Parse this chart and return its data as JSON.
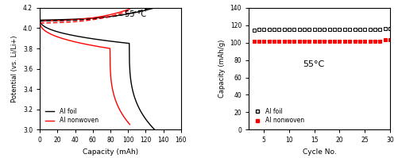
{
  "left_chart": {
    "title_text": "55 °C",
    "xlabel": "Capacity (mAh)",
    "ylabel": "Potential (vs. Li/Li+)",
    "xlim": [
      0,
      160
    ],
    "ylim": [
      3.0,
      4.2
    ],
    "yticks": [
      3.0,
      3.2,
      3.4,
      3.6,
      3.8,
      4.0,
      4.2
    ],
    "xticks": [
      0,
      20,
      40,
      60,
      80,
      100,
      120,
      140,
      160
    ],
    "legend": [
      "Al foil",
      "Al nonwoven"
    ],
    "line_colors": [
      "black",
      "red"
    ]
  },
  "right_chart": {
    "title_text": "55°C",
    "xlabel": "Cycle No.",
    "ylabel": "Capacity (mAh/g)",
    "xlim": [
      2,
      30
    ],
    "ylim": [
      0,
      140
    ],
    "yticks": [
      0,
      20,
      40,
      60,
      80,
      100,
      120,
      140
    ],
    "xticks": [
      5,
      10,
      15,
      20,
      25,
      30
    ],
    "legend": [
      "Al foil",
      "Al nonwoven"
    ],
    "foil_cycles": [
      3,
      4,
      5,
      6,
      7,
      8,
      9,
      10,
      11,
      12,
      13,
      14,
      15,
      16,
      17,
      18,
      19,
      20,
      21,
      22,
      23,
      24,
      25,
      26,
      27,
      28,
      29,
      30
    ],
    "foil_values": [
      114,
      115,
      115,
      115,
      115,
      115,
      115,
      115,
      115,
      115,
      115,
      115,
      115,
      115,
      115,
      115,
      115,
      115,
      115,
      115,
      115,
      115,
      115,
      115,
      115,
      115,
      116,
      116
    ],
    "nonwoven_cycles": [
      3,
      4,
      5,
      6,
      7,
      8,
      9,
      10,
      11,
      12,
      13,
      14,
      15,
      16,
      17,
      18,
      19,
      20,
      21,
      22,
      23,
      24,
      25,
      26,
      27,
      28,
      29,
      30
    ],
    "nonwoven_values": [
      102,
      102,
      102,
      102,
      102,
      102,
      102,
      102,
      102,
      102,
      102,
      102,
      102,
      102,
      102,
      102,
      102,
      102,
      102,
      102,
      102,
      102,
      102,
      102,
      102,
      102,
      103,
      103
    ],
    "foil_color": "black",
    "nonwoven_color": "red"
  }
}
